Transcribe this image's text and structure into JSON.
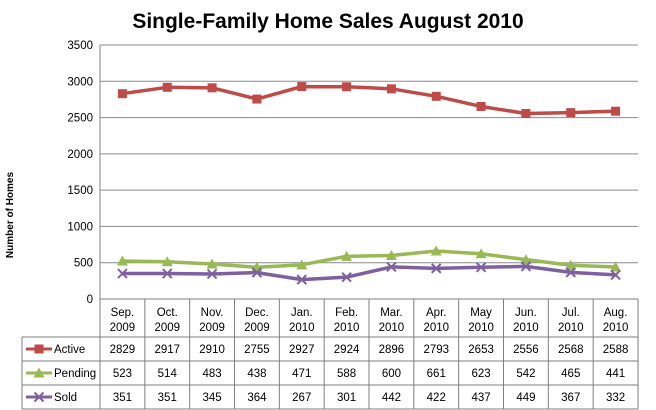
{
  "chart_data": {
    "type": "line",
    "title": "Single-Family Home Sales August 2010",
    "ylabel": "Number of Homes",
    "xlabel": "",
    "ylim": [
      0,
      3500
    ],
    "yticks": [
      "0",
      "500",
      "1000",
      "1500",
      "2000",
      "2500",
      "3000",
      "3500"
    ],
    "grid": true,
    "legend": "data-table",
    "categories": [
      [
        "Sep.",
        "2009"
      ],
      [
        "Oct.",
        "2009"
      ],
      [
        "Nov.",
        "2009"
      ],
      [
        "Dec.",
        "2009"
      ],
      [
        "Jan.",
        "2010"
      ],
      [
        "Feb.",
        "2010"
      ],
      [
        "Mar.",
        "2010"
      ],
      [
        "Apr.",
        "2010"
      ],
      [
        "May",
        "2010"
      ],
      [
        "Jun.",
        "2010"
      ],
      [
        "Jul.",
        "2010"
      ],
      [
        "Aug.",
        "2010"
      ]
    ],
    "series": [
      {
        "name": "Active",
        "color": "#be4b48",
        "marker": "square",
        "values": [
          2829,
          2917,
          2910,
          2755,
          2927,
          2924,
          2896,
          2793,
          2653,
          2556,
          2568,
          2588
        ]
      },
      {
        "name": "Pending",
        "color": "#98b954",
        "marker": "triangle",
        "values": [
          523,
          514,
          483,
          438,
          471,
          588,
          600,
          661,
          623,
          542,
          465,
          441
        ]
      },
      {
        "name": "Sold",
        "color": "#7e60a1",
        "marker": "x",
        "values": [
          351,
          351,
          345,
          364,
          267,
          301,
          442,
          422,
          437,
          449,
          367,
          332
        ]
      }
    ]
  }
}
